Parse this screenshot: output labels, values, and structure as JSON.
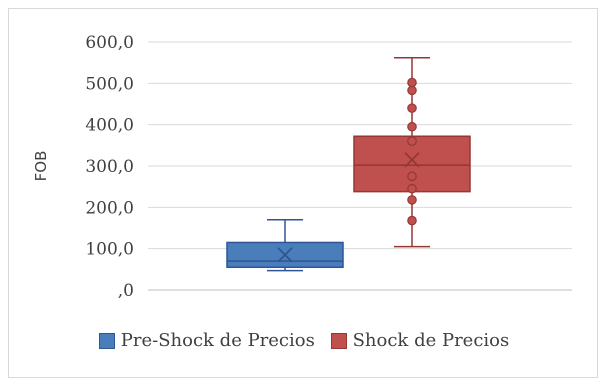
{
  "chart_data": {
    "type": "boxplot",
    "ylabel": "FOB",
    "ylim": [
      0,
      600
    ],
    "ytick_step": 100,
    "ytick_labels": [
      "600,0",
      "500,0",
      "400,0",
      "300,0",
      "200,0",
      "100,0",
      ",0"
    ],
    "grid": true,
    "legend_position": "bottom",
    "series": [
      {
        "name": "Pre-Shock de Precios",
        "color": "#4a7ebb",
        "edge_color": "#2f5597",
        "min": 47,
        "q1": 55,
        "median": 70,
        "q3": 115,
        "max": 170,
        "mean": 85,
        "outliers": []
      },
      {
        "name": "Shock de Precios",
        "color": "#c0504d",
        "edge_color": "#953735",
        "min": 105,
        "q1": 238,
        "median": 302,
        "q3": 372,
        "max": 562,
        "mean": 315,
        "outliers": [
          168,
          218,
          245,
          275,
          360,
          395,
          440,
          483,
          502
        ]
      }
    ]
  }
}
